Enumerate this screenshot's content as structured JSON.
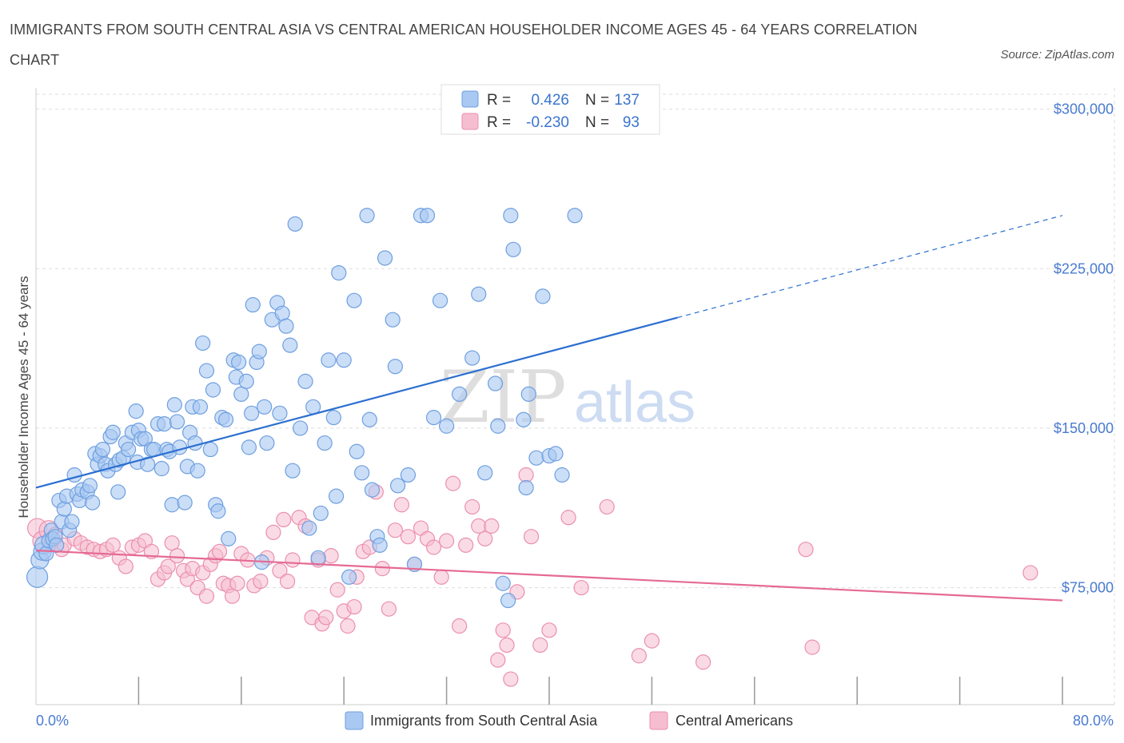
{
  "title": "IMMIGRANTS FROM SOUTH CENTRAL ASIA VS CENTRAL AMERICAN HOUSEHOLDER INCOME AGES 45 - 64 YEARS CORRELATION CHART",
  "source": "Source: ZipAtlas.com",
  "watermark": {
    "zip": "ZIP",
    "atlas": "atlas"
  },
  "colors": {
    "blue_fill": "#a9c8f2",
    "blue_stroke": "#6e9fe0",
    "blue_line": "#2c6fd0",
    "pink_fill": "#f6bdd0",
    "pink_stroke": "#eb8fae",
    "pink_line": "#e56a93",
    "tick_text": "#4a7bd0",
    "grid": "#dddddd"
  },
  "stats": [
    {
      "r_label": "R =",
      "r_value": "0.426",
      "n_label": "N =",
      "n_value": "137"
    },
    {
      "r_label": "R =",
      "r_value": "-0.230",
      "n_label": "N =",
      "n_value": "93"
    }
  ],
  "chart_data": {
    "type": "scatter",
    "title": "IMMIGRANTS FROM SOUTH CENTRAL ASIA VS CENTRAL AMERICAN HOUSEHOLDER INCOME AGES 45 - 64 YEARS CORRELATION CHART",
    "xlabel": "",
    "ylabel": "Householder Income Ages 45 - 64 years",
    "xlim": [
      0,
      80
    ],
    "ylim": [
      20000,
      310000
    ],
    "x_tick_labels": [
      {
        "value": 0,
        "label": "0.0%"
      },
      {
        "value": 80,
        "label": "80.0%"
      }
    ],
    "y_tick_labels": [
      {
        "value": 75000,
        "label": "$75,000"
      },
      {
        "value": 150000,
        "label": "$150,000"
      },
      {
        "value": 225000,
        "label": "$225,000"
      },
      {
        "value": 300000,
        "label": "$300,000"
      }
    ],
    "legend": [
      "Immigrants from South Central Asia",
      "Central Americans"
    ],
    "series": [
      {
        "name": "Immigrants from South Central Asia",
        "trend": {
          "x": [
            0,
            50
          ],
          "y": [
            122000,
            202000
          ],
          "dashed_to": {
            "x": 80,
            "y": 250000
          }
        },
        "points": [
          [
            0.1,
            80000
          ],
          [
            0.3,
            88000
          ],
          [
            0.5,
            92000
          ],
          [
            0.6,
            95000
          ],
          [
            0.8,
            91000
          ],
          [
            1.0,
            97000
          ],
          [
            1.2,
            102000
          ],
          [
            1.3,
            98000
          ],
          [
            1.5,
            99000
          ],
          [
            1.6,
            95000
          ],
          [
            1.8,
            116000
          ],
          [
            2.0,
            106000
          ],
          [
            2.2,
            112000
          ],
          [
            2.4,
            118000
          ],
          [
            2.6,
            102000
          ],
          [
            2.8,
            106000
          ],
          [
            3.0,
            128000
          ],
          [
            3.2,
            119000
          ],
          [
            3.4,
            116000
          ],
          [
            3.6,
            121000
          ],
          [
            4.0,
            120000
          ],
          [
            4.2,
            123000
          ],
          [
            4.4,
            115000
          ],
          [
            4.6,
            138000
          ],
          [
            4.8,
            133000
          ],
          [
            5.0,
            137000
          ],
          [
            5.2,
            140000
          ],
          [
            5.4,
            133000
          ],
          [
            5.6,
            130000
          ],
          [
            5.8,
            146000
          ],
          [
            6.0,
            148000
          ],
          [
            6.2,
            133000
          ],
          [
            6.4,
            120000
          ],
          [
            6.5,
            135000
          ],
          [
            6.8,
            136000
          ],
          [
            7.0,
            143000
          ],
          [
            7.2,
            140000
          ],
          [
            7.5,
            148000
          ],
          [
            7.8,
            158000
          ],
          [
            7.9,
            134000
          ],
          [
            8.0,
            149000
          ],
          [
            8.2,
            145000
          ],
          [
            8.5,
            145000
          ],
          [
            8.7,
            133000
          ],
          [
            9.0,
            140000
          ],
          [
            9.2,
            140000
          ],
          [
            9.5,
            152000
          ],
          [
            9.8,
            131000
          ],
          [
            10.0,
            152000
          ],
          [
            10.2,
            140000
          ],
          [
            10.4,
            139000
          ],
          [
            10.6,
            114000
          ],
          [
            10.8,
            161000
          ],
          [
            11.0,
            153000
          ],
          [
            11.2,
            141000
          ],
          [
            11.6,
            115000
          ],
          [
            11.8,
            132000
          ],
          [
            12.0,
            148000
          ],
          [
            12.2,
            160000
          ],
          [
            12.4,
            143000
          ],
          [
            12.6,
            130000
          ],
          [
            12.8,
            160000
          ],
          [
            13.0,
            190000
          ],
          [
            13.3,
            177000
          ],
          [
            13.6,
            140000
          ],
          [
            13.8,
            168000
          ],
          [
            14.0,
            114000
          ],
          [
            14.2,
            111000
          ],
          [
            14.5,
            155000
          ],
          [
            14.8,
            154000
          ],
          [
            15.0,
            98000
          ],
          [
            15.4,
            182000
          ],
          [
            15.6,
            174000
          ],
          [
            15.8,
            181000
          ],
          [
            16.0,
            166000
          ],
          [
            16.4,
            172000
          ],
          [
            16.6,
            141000
          ],
          [
            16.8,
            157000
          ],
          [
            16.9,
            208000
          ],
          [
            17.2,
            181000
          ],
          [
            17.4,
            186000
          ],
          [
            17.6,
            87000
          ],
          [
            17.8,
            160000
          ],
          [
            18.0,
            143000
          ],
          [
            18.4,
            201000
          ],
          [
            18.8,
            209000
          ],
          [
            19.0,
            157000
          ],
          [
            19.2,
            204000
          ],
          [
            19.5,
            198000
          ],
          [
            19.8,
            189000
          ],
          [
            20.0,
            130000
          ],
          [
            20.2,
            246000
          ],
          [
            20.6,
            150000
          ],
          [
            21.0,
            172000
          ],
          [
            21.3,
            103000
          ],
          [
            21.6,
            160000
          ],
          [
            22.0,
            89000
          ],
          [
            22.2,
            110000
          ],
          [
            22.5,
            143000
          ],
          [
            22.8,
            182000
          ],
          [
            23.2,
            155000
          ],
          [
            23.4,
            118000
          ],
          [
            23.6,
            223000
          ],
          [
            24.0,
            182000
          ],
          [
            24.4,
            80000
          ],
          [
            24.8,
            210000
          ],
          [
            25.0,
            139000
          ],
          [
            25.4,
            129000
          ],
          [
            25.8,
            250000
          ],
          [
            26.0,
            154000
          ],
          [
            26.2,
            121000
          ],
          [
            26.6,
            99000
          ],
          [
            26.8,
            95000
          ],
          [
            27.2,
            230000
          ],
          [
            27.8,
            201000
          ],
          [
            28.0,
            179000
          ],
          [
            28.2,
            123000
          ],
          [
            29.0,
            128000
          ],
          [
            29.5,
            86000
          ],
          [
            30.0,
            250000
          ],
          [
            30.5,
            250000
          ],
          [
            31.0,
            155000
          ],
          [
            31.5,
            210000
          ],
          [
            32.0,
            151000
          ],
          [
            33.0,
            166000
          ],
          [
            34.0,
            183000
          ],
          [
            34.5,
            213000
          ],
          [
            35.0,
            129000
          ],
          [
            35.8,
            171000
          ],
          [
            36.0,
            151000
          ],
          [
            36.4,
            77000
          ],
          [
            36.8,
            69000
          ],
          [
            37.0,
            250000
          ],
          [
            37.2,
            234000
          ],
          [
            38.0,
            154000
          ],
          [
            38.2,
            122000
          ],
          [
            38.4,
            166000
          ],
          [
            39.0,
            136000
          ],
          [
            39.5,
            212000
          ],
          [
            40.0,
            137000
          ],
          [
            40.5,
            138000
          ],
          [
            41.0,
            128000
          ],
          [
            42.0,
            250000
          ]
        ]
      },
      {
        "name": "Central Americans",
        "trend": {
          "x": [
            0,
            80
          ],
          "y": [
            92500,
            69000
          ]
        },
        "points": [
          [
            0.1,
            103000
          ],
          [
            0.5,
            97000
          ],
          [
            1.0,
            102000
          ],
          [
            1.2,
            96000
          ],
          [
            1.5,
            100000
          ],
          [
            2.0,
            93000
          ],
          [
            2.2,
            95000
          ],
          [
            3.0,
            98000
          ],
          [
            3.5,
            96000
          ],
          [
            4.0,
            94000
          ],
          [
            4.5,
            93000
          ],
          [
            5.0,
            92000
          ],
          [
            5.5,
            93000
          ],
          [
            6.0,
            95000
          ],
          [
            6.5,
            89000
          ],
          [
            7.0,
            85000
          ],
          [
            7.5,
            94000
          ],
          [
            8.0,
            95000
          ],
          [
            8.5,
            97000
          ],
          [
            9.0,
            92000
          ],
          [
            9.5,
            79000
          ],
          [
            10.0,
            82000
          ],
          [
            10.3,
            85000
          ],
          [
            10.6,
            96000
          ],
          [
            11.0,
            90000
          ],
          [
            11.5,
            83000
          ],
          [
            11.8,
            79000
          ],
          [
            12.2,
            84000
          ],
          [
            12.6,
            75000
          ],
          [
            13.0,
            82000
          ],
          [
            13.3,
            71000
          ],
          [
            13.6,
            86000
          ],
          [
            14.0,
            90000
          ],
          [
            14.3,
            92000
          ],
          [
            14.6,
            77000
          ],
          [
            15.0,
            76000
          ],
          [
            15.3,
            71000
          ],
          [
            15.7,
            77000
          ],
          [
            16.0,
            91000
          ],
          [
            16.5,
            88000
          ],
          [
            17.0,
            76000
          ],
          [
            17.5,
            78000
          ],
          [
            18.0,
            89000
          ],
          [
            18.5,
            101000
          ],
          [
            19.0,
            83000
          ],
          [
            19.3,
            107000
          ],
          [
            19.6,
            78000
          ],
          [
            20.0,
            88000
          ],
          [
            20.5,
            108000
          ],
          [
            21.0,
            104000
          ],
          [
            21.5,
            61000
          ],
          [
            22.0,
            88000
          ],
          [
            22.3,
            58000
          ],
          [
            22.6,
            61000
          ],
          [
            23.0,
            90000
          ],
          [
            23.5,
            74000
          ],
          [
            24.0,
            64000
          ],
          [
            24.3,
            57000
          ],
          [
            24.8,
            66000
          ],
          [
            25.0,
            80000
          ],
          [
            25.5,
            92000
          ],
          [
            26.0,
            94000
          ],
          [
            26.5,
            120000
          ],
          [
            27.0,
            84000
          ],
          [
            27.5,
            65000
          ],
          [
            28.0,
            102000
          ],
          [
            28.5,
            114000
          ],
          [
            29.0,
            99000
          ],
          [
            29.5,
            86000
          ],
          [
            30.0,
            103000
          ],
          [
            30.5,
            98000
          ],
          [
            31.0,
            94000
          ],
          [
            31.6,
            80000
          ],
          [
            32.0,
            97000
          ],
          [
            32.5,
            124000
          ],
          [
            33.0,
            57000
          ],
          [
            33.5,
            95000
          ],
          [
            34.0,
            113000
          ],
          [
            34.5,
            104000
          ],
          [
            35.0,
            98000
          ],
          [
            35.5,
            104000
          ],
          [
            36.0,
            41000
          ],
          [
            36.4,
            55000
          ],
          [
            36.7,
            48000
          ],
          [
            37.0,
            32000
          ],
          [
            37.5,
            73000
          ],
          [
            38.2,
            128000
          ],
          [
            38.6,
            99000
          ],
          [
            39.3,
            48000
          ],
          [
            40.0,
            55000
          ],
          [
            41.5,
            108000
          ],
          [
            42.5,
            75000
          ],
          [
            44.5,
            113000
          ],
          [
            47.0,
            43000
          ],
          [
            48.0,
            50000
          ],
          [
            52.0,
            40000
          ],
          [
            60.0,
            93000
          ],
          [
            60.5,
            47000
          ],
          [
            77.5,
            82000
          ]
        ]
      }
    ]
  }
}
